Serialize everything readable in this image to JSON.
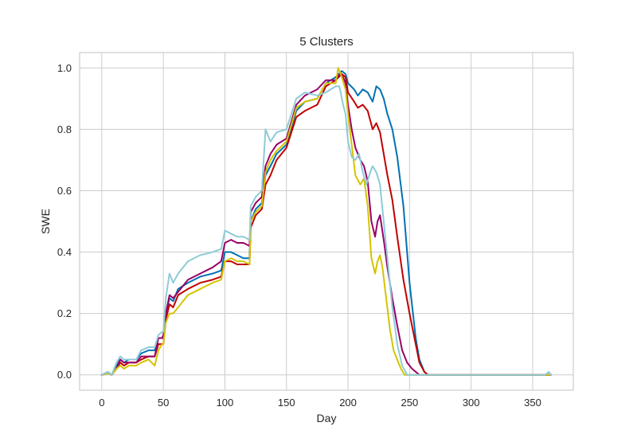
{
  "chart_data": {
    "type": "line",
    "title": "5 Clusters",
    "xlabel": "Day",
    "ylabel": "SWE",
    "xlim": [
      -18,
      383
    ],
    "ylim": [
      -0.05,
      1.05
    ],
    "xticks": [
      0,
      50,
      100,
      150,
      200,
      250,
      300,
      350
    ],
    "xtick_labels": [
      "0",
      "50",
      "100",
      "150",
      "200",
      "250",
      "300",
      "350"
    ],
    "yticks": [
      0.0,
      0.2,
      0.4,
      0.6,
      0.8,
      1.0
    ],
    "ytick_labels": [
      "0.0",
      "0.2",
      "0.4",
      "0.6",
      "0.8",
      "1.0"
    ],
    "grid": true,
    "legend": "none",
    "series": [
      {
        "color": "#0072b2",
        "x": [
          0,
          5,
          8,
          12,
          15,
          18,
          22,
          28,
          32,
          38,
          43,
          46,
          49,
          50,
          52,
          55,
          58,
          62,
          70,
          80,
          90,
          97,
          100,
          105,
          110,
          115,
          120,
          121,
          125,
          130,
          133,
          137,
          142,
          150,
          158,
          165,
          175,
          182,
          190,
          195,
          198,
          200,
          205,
          208,
          212,
          216,
          220,
          223,
          226,
          229,
          232,
          236,
          240,
          245,
          250,
          255,
          258,
          262,
          265,
          268,
          270,
          365
        ],
        "y": [
          0,
          0.01,
          0,
          0.03,
          0.05,
          0.04,
          0.05,
          0.05,
          0.07,
          0.08,
          0.08,
          0.12,
          0.12,
          0.12,
          0.2,
          0.25,
          0.24,
          0.28,
          0.3,
          0.32,
          0.33,
          0.34,
          0.4,
          0.4,
          0.39,
          0.38,
          0.38,
          0.5,
          0.54,
          0.56,
          0.65,
          0.68,
          0.72,
          0.75,
          0.86,
          0.89,
          0.9,
          0.95,
          0.97,
          0.99,
          0.98,
          0.95,
          0.93,
          0.91,
          0.93,
          0.92,
          0.89,
          0.94,
          0.93,
          0.9,
          0.85,
          0.8,
          0.71,
          0.55,
          0.3,
          0.12,
          0.05,
          0.01,
          0,
          0,
          0,
          0
        ]
      },
      {
        "color": "#c00000",
        "x": [
          0,
          5,
          8,
          12,
          15,
          18,
          22,
          28,
          32,
          38,
          43,
          46,
          49,
          50,
          52,
          55,
          58,
          62,
          70,
          80,
          90,
          97,
          100,
          105,
          110,
          115,
          120,
          121,
          125,
          130,
          133,
          137,
          142,
          150,
          158,
          165,
          175,
          182,
          190,
          195,
          198,
          200,
          205,
          208,
          212,
          216,
          220,
          223,
          226,
          229,
          232,
          236,
          240,
          245,
          250,
          255,
          258,
          262,
          265,
          268,
          270,
          365
        ],
        "y": [
          0,
          0.005,
          0,
          0.02,
          0.04,
          0.03,
          0.04,
          0.04,
          0.05,
          0.06,
          0.06,
          0.1,
          0.1,
          0.1,
          0.18,
          0.23,
          0.22,
          0.26,
          0.28,
          0.3,
          0.31,
          0.32,
          0.37,
          0.37,
          0.36,
          0.36,
          0.36,
          0.48,
          0.52,
          0.54,
          0.62,
          0.65,
          0.7,
          0.74,
          0.84,
          0.86,
          0.88,
          0.94,
          0.96,
          0.98,
          0.97,
          0.92,
          0.89,
          0.87,
          0.88,
          0.86,
          0.8,
          0.82,
          0.79,
          0.72,
          0.65,
          0.57,
          0.45,
          0.31,
          0.2,
          0.1,
          0.04,
          0.01,
          0,
          0,
          0,
          0
        ]
      },
      {
        "color": "#990066",
        "x": [
          0,
          5,
          8,
          12,
          15,
          18,
          22,
          28,
          32,
          38,
          43,
          46,
          49,
          50,
          52,
          55,
          58,
          62,
          70,
          80,
          90,
          97,
          100,
          105,
          110,
          115,
          120,
          121,
          125,
          130,
          133,
          137,
          142,
          150,
          158,
          165,
          175,
          182,
          190,
          193,
          196,
          198,
          200,
          203,
          206,
          210,
          213,
          216,
          219,
          222,
          224,
          226,
          229,
          232,
          236,
          240,
          244,
          248,
          252,
          255,
          258,
          262,
          265,
          365
        ],
        "y": [
          0,
          0.005,
          0,
          0.02,
          0.05,
          0.04,
          0.04,
          0.04,
          0.06,
          0.06,
          0.06,
          0.12,
          0.12,
          0.13,
          0.2,
          0.26,
          0.25,
          0.27,
          0.31,
          0.33,
          0.35,
          0.37,
          0.43,
          0.44,
          0.43,
          0.43,
          0.42,
          0.53,
          0.56,
          0.58,
          0.68,
          0.72,
          0.75,
          0.77,
          0.88,
          0.91,
          0.93,
          0.96,
          0.96,
          0.98,
          0.97,
          0.95,
          0.88,
          0.8,
          0.74,
          0.7,
          0.68,
          0.63,
          0.5,
          0.45,
          0.5,
          0.52,
          0.44,
          0.35,
          0.25,
          0.16,
          0.08,
          0.04,
          0.02,
          0.01,
          0,
          0,
          0,
          0
        ]
      },
      {
        "color": "#d4c400",
        "x": [
          0,
          5,
          8,
          12,
          15,
          18,
          22,
          28,
          32,
          38,
          43,
          46,
          49,
          50,
          52,
          55,
          58,
          62,
          70,
          80,
          90,
          97,
          100,
          105,
          110,
          115,
          120,
          121,
          125,
          130,
          133,
          137,
          142,
          150,
          158,
          165,
          175,
          182,
          190,
          192,
          195,
          198,
          200,
          203,
          206,
          210,
          213,
          216,
          219,
          222,
          224,
          226,
          228,
          231,
          234,
          237,
          240,
          243,
          246,
          249,
          252,
          365
        ],
        "y": [
          0,
          0.005,
          0,
          0.02,
          0.03,
          0.02,
          0.03,
          0.03,
          0.04,
          0.05,
          0.03,
          0.08,
          0.1,
          0.1,
          0.17,
          0.2,
          0.2,
          0.22,
          0.26,
          0.28,
          0.3,
          0.31,
          0.37,
          0.38,
          0.37,
          0.37,
          0.36,
          0.5,
          0.53,
          0.55,
          0.66,
          0.7,
          0.73,
          0.76,
          0.87,
          0.89,
          0.9,
          0.95,
          0.95,
          1.0,
          0.97,
          0.93,
          0.85,
          0.75,
          0.65,
          0.62,
          0.64,
          0.55,
          0.38,
          0.33,
          0.37,
          0.39,
          0.35,
          0.25,
          0.15,
          0.08,
          0.05,
          0.02,
          0,
          0,
          0,
          0
        ]
      },
      {
        "color": "#8ecbd8",
        "x": [
          0,
          5,
          8,
          12,
          15,
          18,
          22,
          28,
          32,
          38,
          43,
          46,
          49,
          50,
          52,
          55,
          58,
          62,
          70,
          80,
          90,
          97,
          100,
          105,
          110,
          115,
          120,
          121,
          125,
          130,
          133,
          137,
          142,
          150,
          158,
          165,
          175,
          182,
          190,
          193,
          196,
          198,
          200,
          203,
          206,
          209,
          212,
          215,
          218,
          220,
          223,
          226,
          229,
          232,
          236,
          240,
          244,
          248,
          252,
          256,
          260,
          265,
          270,
          275,
          280,
          290,
          300,
          310,
          320,
          330,
          340,
          350,
          360,
          363,
          365
        ],
        "y": [
          0,
          0.01,
          0,
          0.04,
          0.06,
          0.05,
          0.05,
          0.05,
          0.08,
          0.09,
          0.09,
          0.13,
          0.14,
          0.14,
          0.25,
          0.33,
          0.3,
          0.33,
          0.37,
          0.39,
          0.4,
          0.41,
          0.47,
          0.46,
          0.45,
          0.45,
          0.44,
          0.55,
          0.58,
          0.6,
          0.8,
          0.76,
          0.79,
          0.8,
          0.9,
          0.92,
          0.91,
          0.92,
          0.94,
          0.94,
          0.88,
          0.85,
          0.76,
          0.71,
          0.7,
          0.72,
          0.66,
          0.62,
          0.66,
          0.68,
          0.66,
          0.62,
          0.5,
          0.38,
          0.22,
          0.1,
          0.03,
          0,
          0,
          0,
          0,
          0,
          0,
          0,
          0,
          0,
          0,
          0,
          0,
          0,
          0,
          0,
          0,
          0.01,
          0
        ]
      }
    ]
  }
}
